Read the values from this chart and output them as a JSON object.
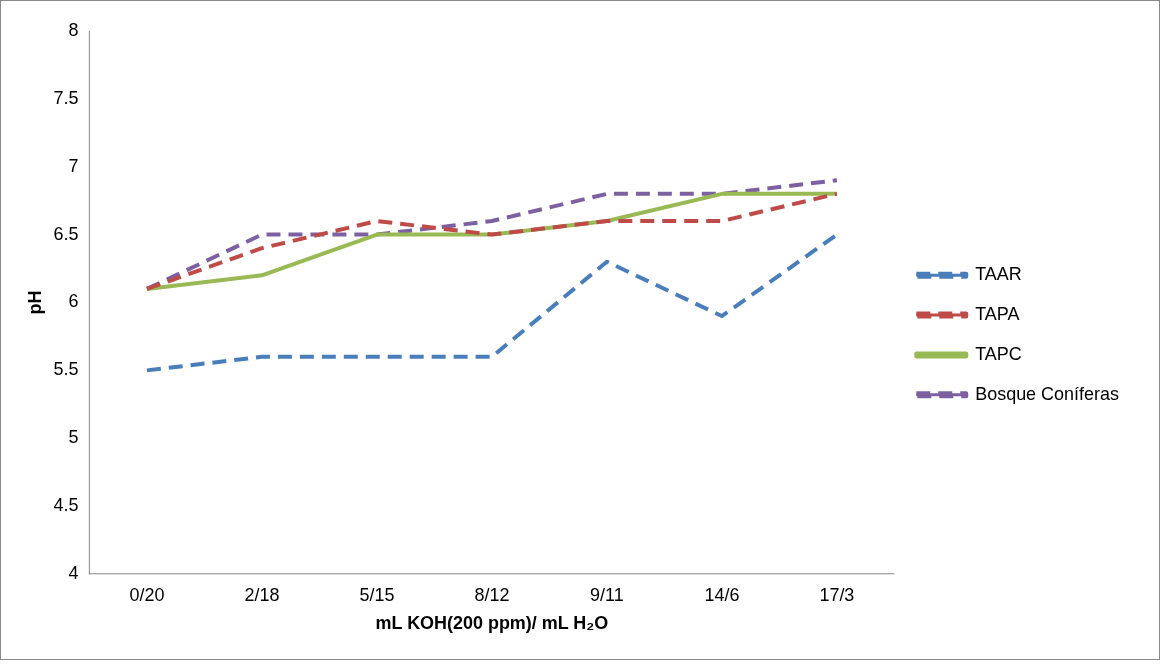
{
  "chart_data": {
    "type": "line",
    "xlabel": "mL KOH(200 ppm)/ mL H₂O",
    "ylabel": "pH",
    "categories": [
      "0/20",
      "2/18",
      "5/15",
      "8/12",
      "9/11",
      "14/6",
      "17/3"
    ],
    "series": [
      {
        "name": "TAAR",
        "color": "#4a7ebb",
        "line_style": "dashed",
        "values": [
          5.5,
          5.6,
          5.6,
          5.6,
          6.3,
          5.9,
          6.5
        ]
      },
      {
        "name": "TAPA",
        "color": "#be4b48",
        "line_style": "dashed",
        "values": [
          6.1,
          6.4,
          6.6,
          6.5,
          6.6,
          6.6,
          6.8
        ]
      },
      {
        "name": "TAPC",
        "color": "#98b954",
        "line_style": "solid",
        "values": [
          6.1,
          6.2,
          6.5,
          6.5,
          6.6,
          6.8,
          6.8
        ]
      },
      {
        "name": "Bosque Coníferas",
        "color": "#7d60a0",
        "line_style": "dashed",
        "values": [
          6.1,
          6.5,
          6.5,
          6.6,
          6.8,
          6.8,
          6.9
        ]
      }
    ],
    "ylim": [
      4,
      8
    ],
    "yticks": [
      4,
      4.5,
      5,
      5.5,
      6,
      6.5,
      7,
      7.5,
      8
    ],
    "grid": false,
    "legend": "right",
    "marker": "none"
  }
}
